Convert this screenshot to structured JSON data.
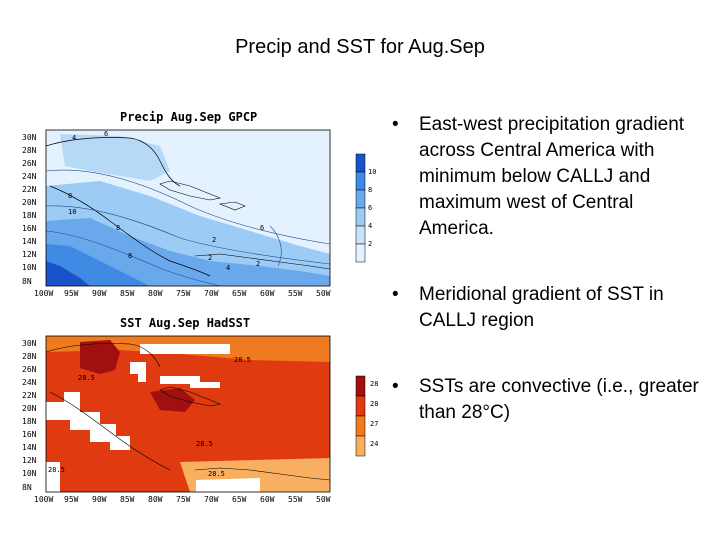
{
  "slide": {
    "title": "Precip and SST for Aug.Sep"
  },
  "precip_map": {
    "title": "Precip Aug.Sep GPCP",
    "lat_labels": [
      "30N",
      "28N",
      "26N",
      "24N",
      "22N",
      "20N",
      "18N",
      "16N",
      "14N",
      "12N",
      "10N",
      "8N"
    ],
    "lon_labels": [
      "100W",
      "95W",
      "90W",
      "85W",
      "80W",
      "75W",
      "70W",
      "65W",
      "60W",
      "55W",
      "50W"
    ],
    "colorbar": [
      "10",
      "8",
      "6",
      "4",
      "2"
    ],
    "contour_labels": [
      "4",
      "6",
      "8",
      "10",
      "8",
      "2",
      "6",
      "2",
      "8",
      "4",
      "2"
    ],
    "colors": {
      "low": "#e4f2ff",
      "mid": "#9ccbf5",
      "high": "#3f8be3",
      "max": "#1a52c9"
    }
  },
  "sst_map": {
    "title": "SST Aug.Sep HadSST",
    "lat_labels": [
      "30N",
      "28N",
      "26N",
      "24N",
      "22N",
      "20N",
      "18N",
      "16N",
      "14N",
      "12N",
      "10N",
      "8N"
    ],
    "lon_labels": [
      "100W",
      "95W",
      "90W",
      "85W",
      "80W",
      "75W",
      "70W",
      "65W",
      "60W",
      "55W",
      "50W"
    ],
    "colorbar": [
      "28.5",
      "28.5",
      "27.5",
      "24.5"
    ],
    "contour_labels": [
      "28.5",
      "28.5",
      "28.5",
      "28.5",
      "28.5"
    ],
    "colors": {
      "hot": "#a11010",
      "warm": "#e03a10",
      "mild": "#f07a20",
      "cool": "#f8b060"
    }
  },
  "bullets": [
    "East-west precipitation gradient across Central America with minimum below CALLJ and maximum west of Central America.",
    "Meridional gradient of SST in CALLJ region",
    "SSTs are convective (i.e., greater than 28°C)"
  ]
}
